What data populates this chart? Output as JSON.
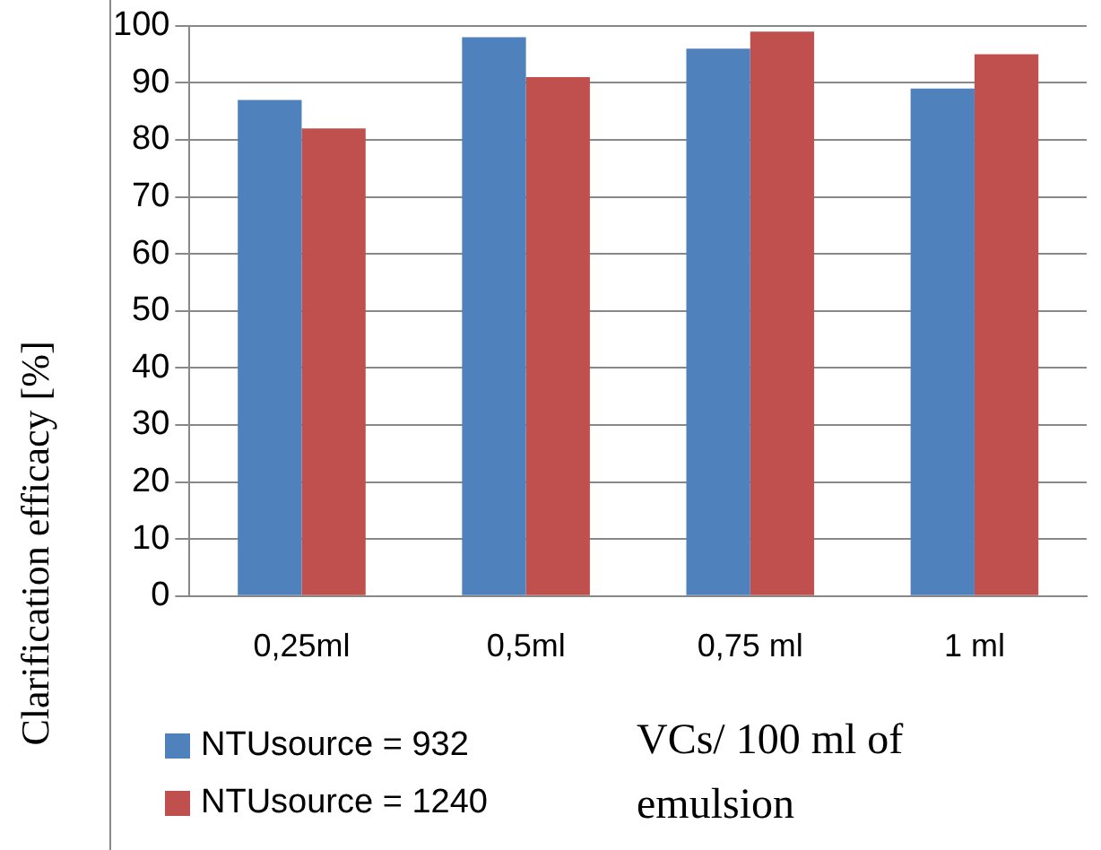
{
  "chart_data": {
    "type": "bar",
    "ylabel": "Clarification efficacy [%]",
    "xlabel": "VCs/ 100 ml of emulsion",
    "categories": [
      "0,25ml",
      "0,5ml",
      "0,75 ml",
      "1 ml"
    ],
    "series": [
      {
        "name": "NTUsource = 932",
        "color": "#4f81bd",
        "values": [
          87,
          98,
          96,
          89
        ]
      },
      {
        "name": "NTUsource = 1240",
        "color": "#c0504d",
        "values": [
          82,
          91,
          99,
          95
        ]
      }
    ],
    "ylim": [
      0,
      100
    ],
    "yticks": [
      0,
      10,
      20,
      30,
      40,
      50,
      60,
      70,
      80,
      90,
      100
    ],
    "grid": "y",
    "legend": "bottom left"
  }
}
